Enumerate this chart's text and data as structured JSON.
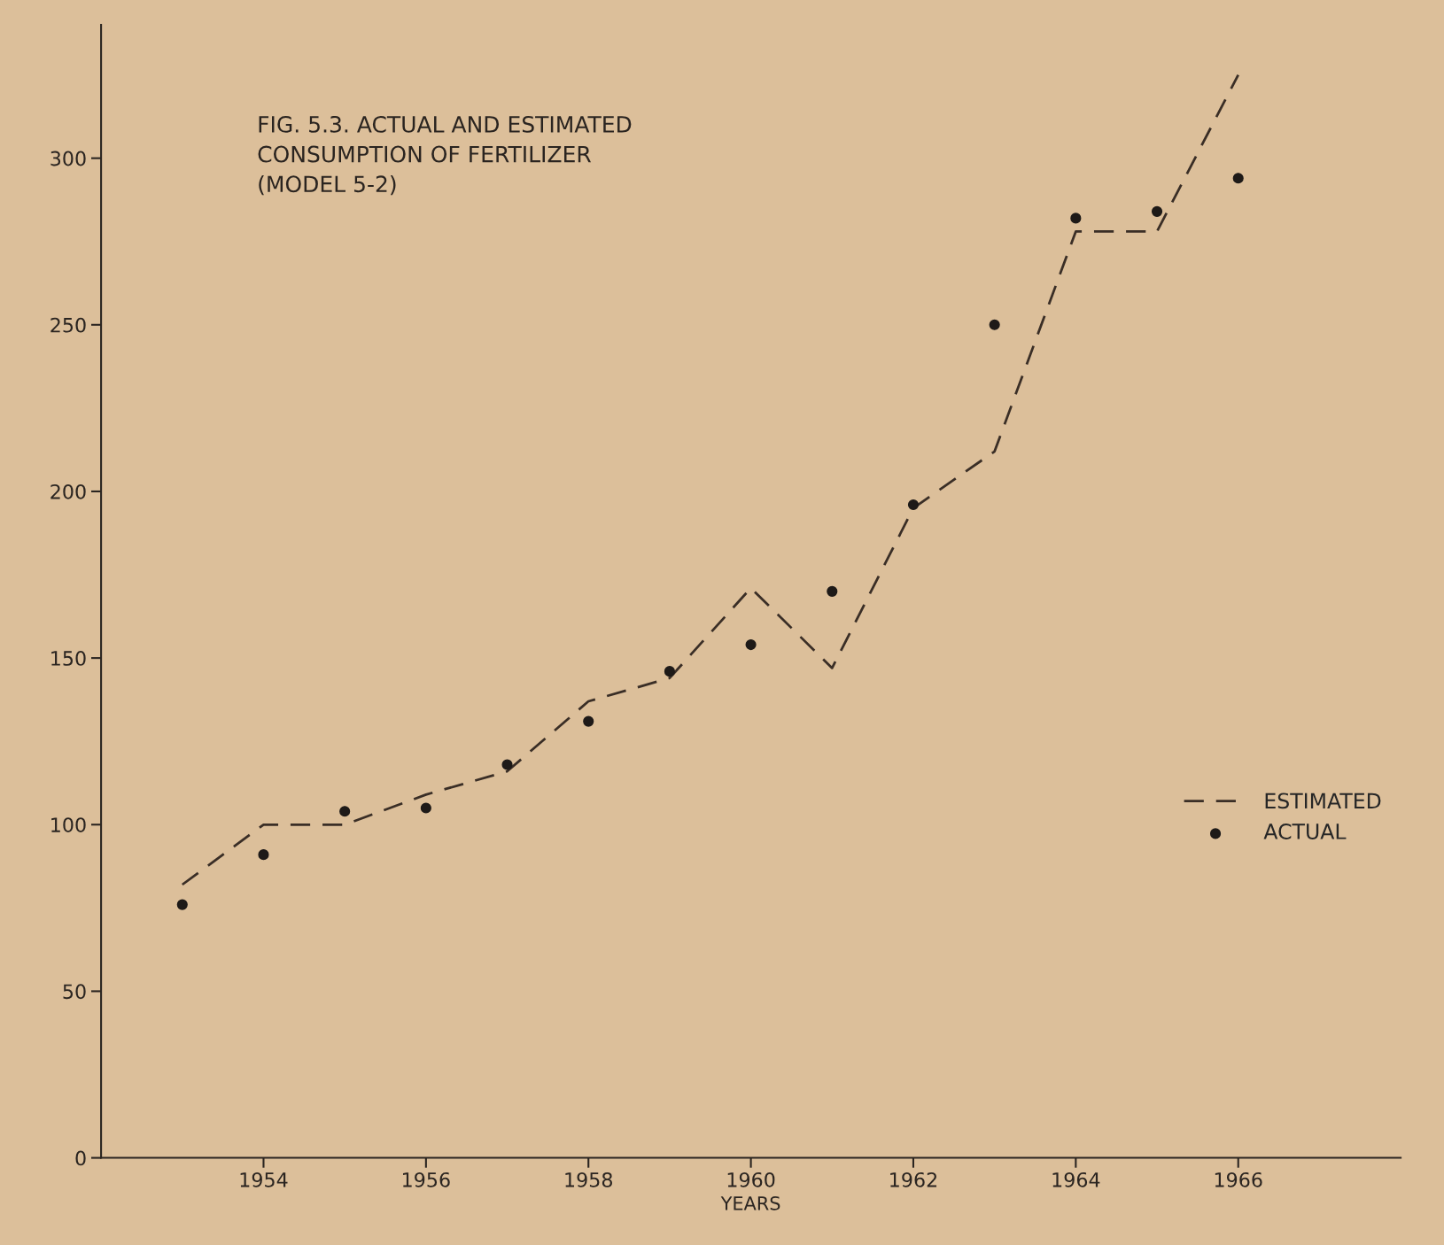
{
  "chart_data": {
    "type": "line",
    "title": "FIG. 5.3. ACTUAL AND ESTIMATED\nCONSUMPTION OF FERTILIZER\n(MODEL 5-2)",
    "xlabel": "YEARS",
    "x": [
      1953,
      1954,
      1955,
      1956,
      1957,
      1958,
      1959,
      1960,
      1961,
      1962,
      1963,
      1964,
      1965,
      1966
    ],
    "series": [
      {
        "name": "ESTIMATED",
        "line_style": "dashed",
        "color": "#3a2e26",
        "values": [
          82,
          100,
          100,
          109,
          116,
          137,
          144,
          171,
          147,
          195,
          212,
          278,
          278,
          325
        ]
      },
      {
        "name": "ACTUAL",
        "type": "scatter",
        "marker": "circle",
        "color": "#1e1a18",
        "values": [
          76,
          91,
          104,
          105,
          118,
          131,
          146,
          154,
          170,
          196,
          250,
          282,
          284,
          294
        ]
      }
    ],
    "xlim": [
      1952,
      1968
    ],
    "ylim": [
      0,
      340
    ],
    "xticks": [
      1954,
      1956,
      1958,
      1960,
      1962,
      1964,
      1966
    ],
    "yticks": [
      0,
      50,
      100,
      150,
      200,
      250,
      300
    ],
    "grid": false,
    "legend": "right"
  }
}
